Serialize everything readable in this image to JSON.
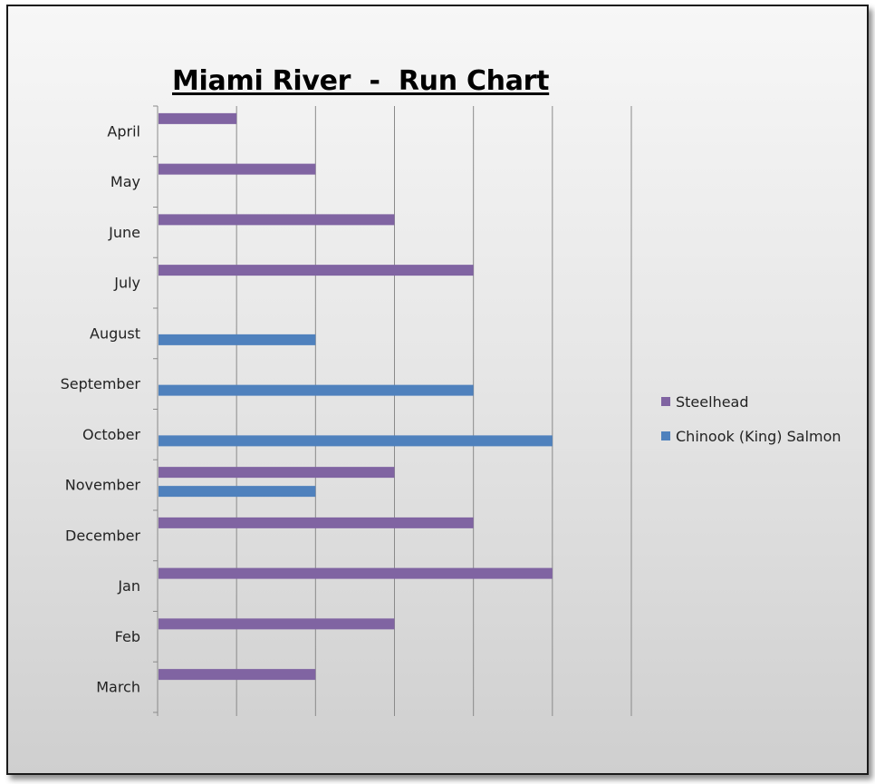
{
  "chart_data": {
    "type": "bar",
    "orientation": "horizontal",
    "title": "Miami River  -  Run Chart",
    "categories": [
      "April",
      "May",
      "June",
      "July",
      "August",
      "September",
      "October",
      "November",
      "December",
      "Jan",
      "Feb",
      "March"
    ],
    "series": [
      {
        "name": "Steelhead",
        "color": "#8064A2",
        "values": [
          1,
          2,
          3,
          4,
          null,
          null,
          null,
          3,
          4,
          5,
          3,
          2
        ]
      },
      {
        "name": "Chinook (King) Salmon",
        "color": "#4F81BD",
        "values": [
          null,
          null,
          null,
          null,
          2,
          4,
          5,
          2,
          null,
          null,
          null,
          null
        ]
      }
    ],
    "xlim": [
      0,
      6
    ],
    "x_tick_labels": false,
    "grid": true,
    "legend_position": "right"
  }
}
